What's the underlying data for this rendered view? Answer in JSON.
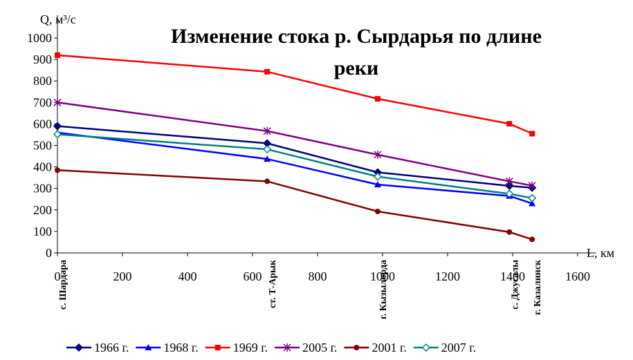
{
  "chart_data": {
    "type": "line",
    "title": "Изменение стока р. Сырдарья по длине реки",
    "y_label": "Q, м³/с",
    "x_label": "L, км",
    "x": [
      0,
      645,
      985,
      1390,
      1460
    ],
    "point_labels": [
      "с. Шардара",
      "ст. Т-Арык",
      "г. Кызылорда",
      "с. Джусалы",
      "г. Казалинск"
    ],
    "series": [
      {
        "name": "1966 г.",
        "color": "#000080",
        "marker": "diamond",
        "values": [
          590,
          510,
          375,
          312,
          303
        ]
      },
      {
        "name": "1968 г.",
        "color": "#0000ff",
        "marker": "triangle",
        "values": [
          560,
          437,
          318,
          265,
          230
        ]
      },
      {
        "name": "1969 г.",
        "color": "#ff0000",
        "marker": "square",
        "values": [
          920,
          843,
          717,
          601,
          555
        ]
      },
      {
        "name": "2005 г.",
        "color": "#800080",
        "marker": "star",
        "values": [
          700,
          567,
          457,
          333,
          313
        ]
      },
      {
        "name": "2001 г.",
        "color": "#800000",
        "marker": "circle",
        "values": [
          385,
          333,
          193,
          97,
          63
        ]
      },
      {
        "name": "2007 г.",
        "color": "#008080",
        "marker": "open-diamond",
        "values": [
          552,
          482,
          355,
          275,
          255
        ]
      }
    ],
    "xlim": [
      0,
      1600
    ],
    "xticks": [
      0,
      200,
      400,
      600,
      800,
      1000,
      1200,
      1400,
      1600
    ],
    "ylim": [
      0,
      1000
    ],
    "yticks": [
      0,
      100,
      200,
      300,
      400,
      500,
      600,
      700,
      800,
      900,
      1000
    ],
    "grid": false,
    "legend": "bottom"
  }
}
